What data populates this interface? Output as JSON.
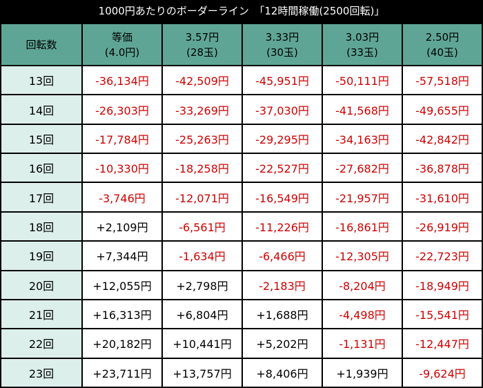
{
  "title": "1000円あたりのボーダーライン　「12時間稼働(2500回転)」",
  "table": {
    "header": [
      [
        "回転数"
      ],
      [
        "等価",
        "(4.0円)"
      ],
      [
        "3.57円",
        "(28玉)"
      ],
      [
        "3.33円",
        "(30玉)"
      ],
      [
        "3.03円",
        "(33玉)"
      ],
      [
        "2.50円",
        "(40玉)"
      ]
    ],
    "rows": [
      [
        "13回",
        "-36,134円",
        "-42,509円",
        "-45,951円",
        "-50,111円",
        "-57,518円"
      ],
      [
        "14回",
        "-26,303円",
        "-33,269円",
        "-37,030円",
        "-41,568円",
        "-49,655円"
      ],
      [
        "15回",
        "-17,784円",
        "-25,263円",
        "-29,295円",
        "-34,163円",
        "-42,842円"
      ],
      [
        "16回",
        "-10,330円",
        "-18,258円",
        "-22,527円",
        "-27,682円",
        "-36,878円"
      ],
      [
        "17回",
        "-3,746円",
        "-12,071円",
        "-16,549円",
        "-21,957円",
        "-31,610円"
      ],
      [
        "18回",
        "+2,109円",
        "-6,561円",
        "-11,226円",
        "-16,861円",
        "-26,919円"
      ],
      [
        "19回",
        "+7,344円",
        "-1,634円",
        "-6,466円",
        "-12,305円",
        "-22,723円"
      ],
      [
        "20回",
        "+12,055円",
        "+2,798円",
        "-2,183円",
        "-8,204円",
        "-18,949円"
      ],
      [
        "21回",
        "+16,313円",
        "+6,804円",
        "+1,688円",
        "-4,498円",
        "-15,541円"
      ],
      [
        "22回",
        "+20,182円",
        "+10,441円",
        "+5,202円",
        "-1,131円",
        "-12,447円"
      ],
      [
        "23回",
        "+23,711円",
        "+13,757円",
        "+8,406円",
        "+1,939円",
        "-9,624円"
      ]
    ]
  }
}
